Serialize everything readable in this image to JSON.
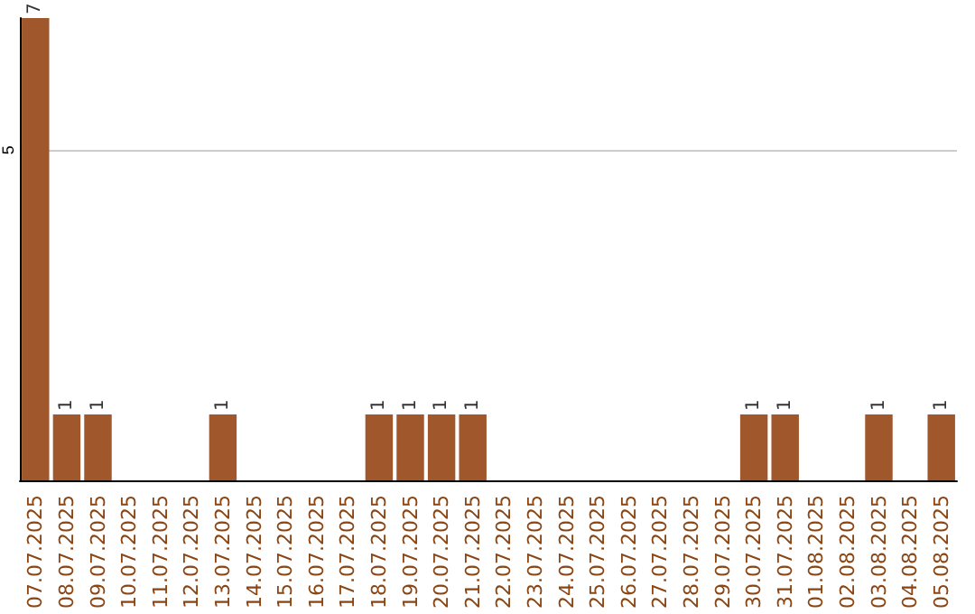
{
  "chart_data": {
    "type": "bar",
    "categories": [
      "07.07.2025",
      "08.07.2025",
      "09.07.2025",
      "10.07.2025",
      "11.07.2025",
      "12.07.2025",
      "13.07.2025",
      "14.07.2025",
      "15.07.2025",
      "16.07.2025",
      "17.07.2025",
      "18.07.2025",
      "19.07.2025",
      "20.07.2025",
      "21.07.2025",
      "22.07.2025",
      "23.07.2025",
      "24.07.2025",
      "25.07.2025",
      "26.07.2025",
      "27.07.2025",
      "28.07.2025",
      "29.07.2025",
      "30.07.2025",
      "31.07.2025",
      "01.08.2025",
      "02.08.2025",
      "03.08.2025",
      "04.08.2025",
      "05.08.2025"
    ],
    "values": [
      7,
      1,
      1,
      0,
      0,
      0,
      1,
      0,
      0,
      0,
      0,
      1,
      1,
      1,
      1,
      0,
      0,
      0,
      0,
      0,
      0,
      0,
      0,
      1,
      1,
      0,
      0,
      1,
      0,
      1
    ],
    "value_labels": [
      "7",
      "1",
      "1",
      null,
      null,
      null,
      "1",
      null,
      null,
      null,
      null,
      "1",
      "1",
      "1",
      "1",
      null,
      null,
      null,
      null,
      null,
      null,
      null,
      null,
      "1",
      "1",
      null,
      null,
      "1",
      null,
      "1"
    ],
    "color": "#a0572b",
    "ylim": [
      0,
      7
    ],
    "yticks": [
      5
    ],
    "grid": "y"
  }
}
